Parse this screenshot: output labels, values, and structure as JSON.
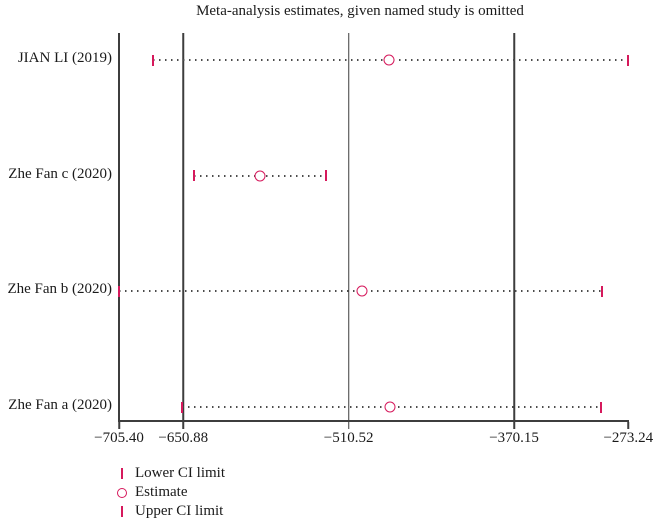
{
  "chart_data": {
    "type": "scatter",
    "subtype": "leave-one-out-meta-analysis-forest",
    "title": "Meta-analysis estimates, given named study is omitted",
    "studies": [
      "JIAN LI (2019)",
      "Zhe Fan c (2020)",
      "Zhe Fan b (2020)",
      "Zhe Fan a (2020)"
    ],
    "series": [
      {
        "name": "Lower CI limit",
        "values": [
          -676.9,
          -641.5,
          -705.4,
          -652.2
        ]
      },
      {
        "name": "Estimate",
        "values": [
          -476.3,
          -585.8,
          -499.4,
          -475.4
        ]
      },
      {
        "name": "Upper CI limit",
        "values": [
          -273.24,
          -530.0,
          -295.3,
          -296.7
        ]
      }
    ],
    "x_ticks": {
      "values": [
        -705.4,
        -650.88,
        -510.52,
        -370.15,
        -273.24
      ],
      "labels": [
        "−705.40",
        "−650.88",
        "−510.52",
        "−370.15",
        "−273.24"
      ]
    },
    "ref_lines": [
      -650.88,
      -510.52,
      -370.15
    ],
    "xlim": [
      -705.4,
      -273.24
    ],
    "grid": false,
    "legend_position": "bottom-left",
    "legend": [
      {
        "marker": "tick",
        "label": "Lower CI limit"
      },
      {
        "marker": "circle",
        "label": "Estimate"
      },
      {
        "marker": "tick",
        "label": "Upper CI limit"
      }
    ],
    "colors": {
      "marker": "#d6195c",
      "axis": "#3d3d3d",
      "dotted_line": "#4c4c4c",
      "text": "#1a1a1a",
      "background": "#ffffff"
    }
  }
}
